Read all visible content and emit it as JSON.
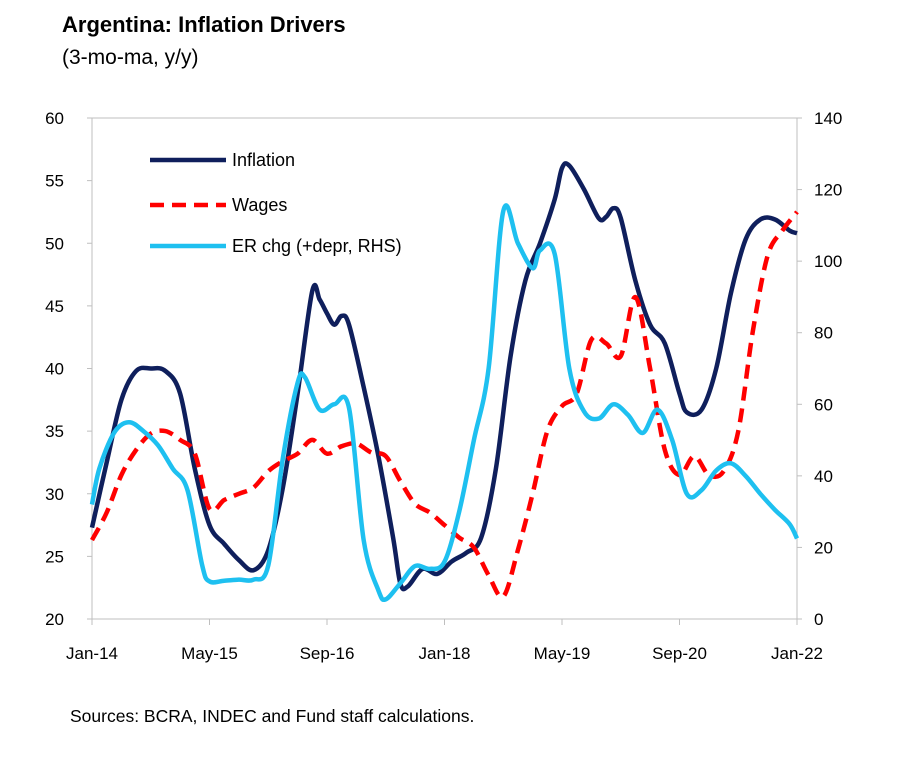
{
  "chart_data": {
    "type": "line",
    "title": "Argentina: Inflation Drivers",
    "subtitle": "(3-mo-ma, y/y)",
    "source": "Sources: BCRA, INDEC and Fund staff calculations.",
    "x_tick_labels": [
      "Jan-14",
      "May-15",
      "Sep-16",
      "Jan-18",
      "May-19",
      "Sep-20",
      "Jan-22"
    ],
    "x_range": [
      "2014-01",
      "2022-01"
    ],
    "y_left": {
      "min": 20,
      "max": 60,
      "ticks": [
        "20",
        "25",
        "30",
        "35",
        "40",
        "45",
        "50",
        "55",
        "60"
      ]
    },
    "y_right": {
      "min": 0,
      "max": 140,
      "ticks": [
        "0",
        "20",
        "40",
        "60",
        "80",
        "100",
        "120",
        "140"
      ]
    },
    "grid": false,
    "legend": "top-left",
    "series": [
      {
        "name": "Inflation",
        "axis": "left",
        "color": "#0f1f5c",
        "style": "solid",
        "points": [
          [
            "2014-01",
            27.3
          ],
          [
            "2014-03",
            32.5
          ],
          [
            "2014-05",
            37.5
          ],
          [
            "2014-07",
            39.8
          ],
          [
            "2014-09",
            40.0
          ],
          [
            "2014-11",
            39.8
          ],
          [
            "2015-01",
            38.0
          ],
          [
            "2015-03",
            32.0
          ],
          [
            "2015-05",
            27.5
          ],
          [
            "2015-07",
            26.0
          ],
          [
            "2015-09",
            24.7
          ],
          [
            "2015-11",
            23.9
          ],
          [
            "2016-01",
            25.5
          ],
          [
            "2016-03",
            30.5
          ],
          [
            "2016-05",
            38.0
          ],
          [
            "2016-07",
            46.2
          ],
          [
            "2016-08",
            45.5
          ],
          [
            "2016-09",
            44.4
          ],
          [
            "2016-10",
            43.5
          ],
          [
            "2016-11",
            44.2
          ],
          [
            "2016-12",
            43.5
          ],
          [
            "2017-02",
            38.5
          ],
          [
            "2017-04",
            33.0
          ],
          [
            "2017-06",
            26.5
          ],
          [
            "2017-07",
            22.8
          ],
          [
            "2017-08",
            22.6
          ],
          [
            "2017-10",
            24.0
          ],
          [
            "2017-12",
            23.6
          ],
          [
            "2018-02",
            24.6
          ],
          [
            "2018-04",
            25.3
          ],
          [
            "2018-06",
            26.5
          ],
          [
            "2018-08",
            32.0
          ],
          [
            "2018-10",
            41.0
          ],
          [
            "2018-12",
            47.0
          ],
          [
            "2019-02",
            50.0
          ],
          [
            "2019-04",
            53.5
          ],
          [
            "2019-05",
            56.0
          ],
          [
            "2019-06",
            56.2
          ],
          [
            "2019-08",
            54.3
          ],
          [
            "2019-10",
            52.0
          ],
          [
            "2019-11",
            52.1
          ],
          [
            "2019-12",
            52.8
          ],
          [
            "2020-01",
            52.0
          ],
          [
            "2020-03",
            47.0
          ],
          [
            "2020-05",
            43.5
          ],
          [
            "2020-07",
            42.0
          ],
          [
            "2020-09",
            38.0
          ],
          [
            "2020-10",
            36.5
          ],
          [
            "2020-12",
            36.7
          ],
          [
            "2021-02",
            40.0
          ],
          [
            "2021-04",
            46.0
          ],
          [
            "2021-06",
            50.3
          ],
          [
            "2021-08",
            51.9
          ],
          [
            "2021-10",
            51.9
          ],
          [
            "2021-12",
            51.0
          ],
          [
            "2022-01",
            50.8
          ]
        ]
      },
      {
        "name": "Wages",
        "axis": "left",
        "color": "#ff0000",
        "style": "dashed",
        "points": [
          [
            "2014-01",
            26.3
          ],
          [
            "2014-03",
            28.5
          ],
          [
            "2014-05",
            31.5
          ],
          [
            "2014-07",
            33.5
          ],
          [
            "2014-09",
            34.8
          ],
          [
            "2014-11",
            35.0
          ],
          [
            "2015-01",
            34.3
          ],
          [
            "2015-03",
            33.2
          ],
          [
            "2015-05",
            28.8
          ],
          [
            "2015-07",
            29.5
          ],
          [
            "2015-09",
            30.0
          ],
          [
            "2015-11",
            30.5
          ],
          [
            "2016-01",
            31.8
          ],
          [
            "2016-03",
            32.6
          ],
          [
            "2016-05",
            33.2
          ],
          [
            "2016-07",
            34.3
          ],
          [
            "2016-09",
            33.2
          ],
          [
            "2016-11",
            33.8
          ],
          [
            "2017-01",
            34.0
          ],
          [
            "2017-03",
            33.3
          ],
          [
            "2017-05",
            33.0
          ],
          [
            "2017-07",
            31.0
          ],
          [
            "2017-09",
            29.2
          ],
          [
            "2017-11",
            28.5
          ],
          [
            "2018-01",
            27.5
          ],
          [
            "2018-03",
            26.5
          ],
          [
            "2018-05",
            25.7
          ],
          [
            "2018-07",
            23.5
          ],
          [
            "2018-09",
            21.8
          ],
          [
            "2018-11",
            25.5
          ],
          [
            "2019-01",
            30.0
          ],
          [
            "2019-03",
            35.0
          ],
          [
            "2019-05",
            37.0
          ],
          [
            "2019-07",
            38.0
          ],
          [
            "2019-09",
            42.3
          ],
          [
            "2019-11",
            42.0
          ],
          [
            "2020-01",
            41.0
          ],
          [
            "2020-03",
            45.7
          ],
          [
            "2020-05",
            40.0
          ],
          [
            "2020-07",
            33.5
          ],
          [
            "2020-09",
            31.5
          ],
          [
            "2020-11",
            33.0
          ],
          [
            "2021-01",
            31.5
          ],
          [
            "2021-03",
            31.8
          ],
          [
            "2021-05",
            35.0
          ],
          [
            "2021-07",
            43.0
          ],
          [
            "2021-09",
            49.0
          ],
          [
            "2021-11",
            51.0
          ],
          [
            "2022-01",
            52.5
          ]
        ]
      },
      {
        "name": "ER chg (+depr, RHS)",
        "axis": "right",
        "color": "#1ec0f0",
        "style": "solid",
        "points": [
          [
            "2014-01",
            32.0
          ],
          [
            "2014-02",
            42.0
          ],
          [
            "2014-04",
            52.0
          ],
          [
            "2014-06",
            55.0
          ],
          [
            "2014-08",
            52.5
          ],
          [
            "2014-10",
            48.5
          ],
          [
            "2014-12",
            42.0
          ],
          [
            "2015-02",
            36.0
          ],
          [
            "2015-04",
            15.0
          ],
          [
            "2015-05",
            10.5
          ],
          [
            "2015-07",
            10.7
          ],
          [
            "2015-09",
            11.0
          ],
          [
            "2015-11",
            11.0
          ],
          [
            "2016-01",
            15.0
          ],
          [
            "2016-03",
            45.0
          ],
          [
            "2016-05",
            66.0
          ],
          [
            "2016-06",
            67.5
          ],
          [
            "2016-08",
            58.5
          ],
          [
            "2016-10",
            60.0
          ],
          [
            "2016-12",
            59.0
          ],
          [
            "2017-02",
            22.0
          ],
          [
            "2017-04",
            8.0
          ],
          [
            "2017-05",
            5.5
          ],
          [
            "2017-07",
            10.0
          ],
          [
            "2017-09",
            14.8
          ],
          [
            "2017-11",
            14.0
          ],
          [
            "2018-01",
            16.0
          ],
          [
            "2018-03",
            30.0
          ],
          [
            "2018-05",
            50.0
          ],
          [
            "2018-07",
            70.0
          ],
          [
            "2018-09",
            114.0
          ],
          [
            "2018-11",
            105.0
          ],
          [
            "2019-01",
            98.0
          ],
          [
            "2019-02",
            103.0
          ],
          [
            "2019-04",
            102.0
          ],
          [
            "2019-06",
            70.0
          ],
          [
            "2019-08",
            58.0
          ],
          [
            "2019-10",
            56.0
          ],
          [
            "2019-12",
            60.0
          ],
          [
            "2020-02",
            57.0
          ],
          [
            "2020-04",
            52.0
          ],
          [
            "2020-06",
            58.5
          ],
          [
            "2020-08",
            50.0
          ],
          [
            "2020-10",
            35.0
          ],
          [
            "2020-12",
            36.0
          ],
          [
            "2021-02",
            41.5
          ],
          [
            "2021-04",
            43.5
          ],
          [
            "2021-06",
            40.0
          ],
          [
            "2021-08",
            35.0
          ],
          [
            "2021-10",
            30.5
          ],
          [
            "2021-12",
            26.5
          ],
          [
            "2022-01",
            22.5
          ]
        ]
      }
    ]
  }
}
